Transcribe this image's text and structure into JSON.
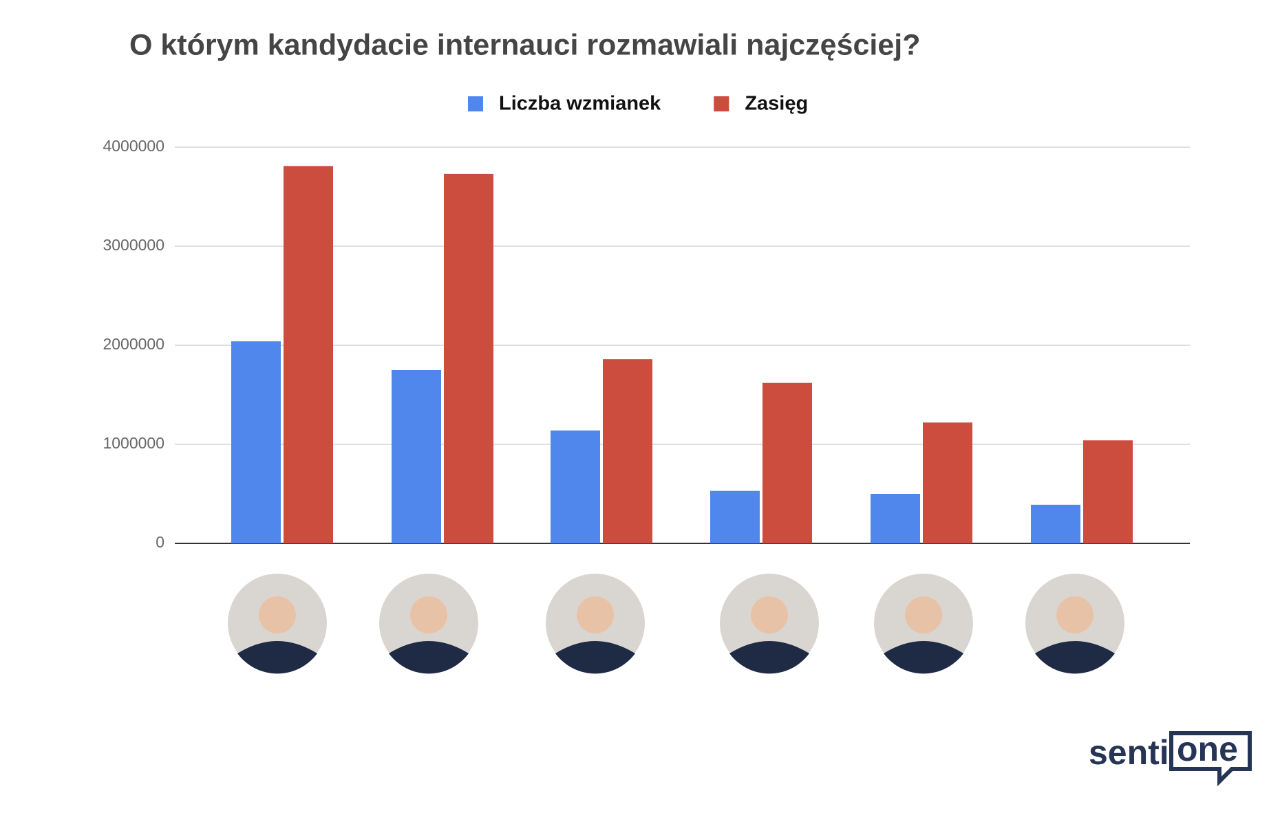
{
  "chart_data": {
    "type": "bar",
    "title": "O którym kandydacie internauci rozmawiali najczęściej?",
    "categories": [
      null,
      null,
      null,
      null,
      null,
      null
    ],
    "series": [
      {
        "name": "Liczba wzmianek",
        "color": "#5087ec",
        "values": [
          2040000,
          1750000,
          1140000,
          530000,
          500000,
          390000
        ]
      },
      {
        "name": "Zasięg",
        "color": "#cc4c3d",
        "values": [
          3810000,
          3730000,
          1860000,
          1620000,
          1220000,
          1040000
        ]
      }
    ],
    "ylim": [
      0,
      4000000
    ],
    "yticks": [
      0,
      1000000,
      2000000,
      3000000,
      4000000
    ],
    "grid": true,
    "legend": "top"
  },
  "branding": {
    "logo_left": "senti",
    "logo_right": "one"
  }
}
